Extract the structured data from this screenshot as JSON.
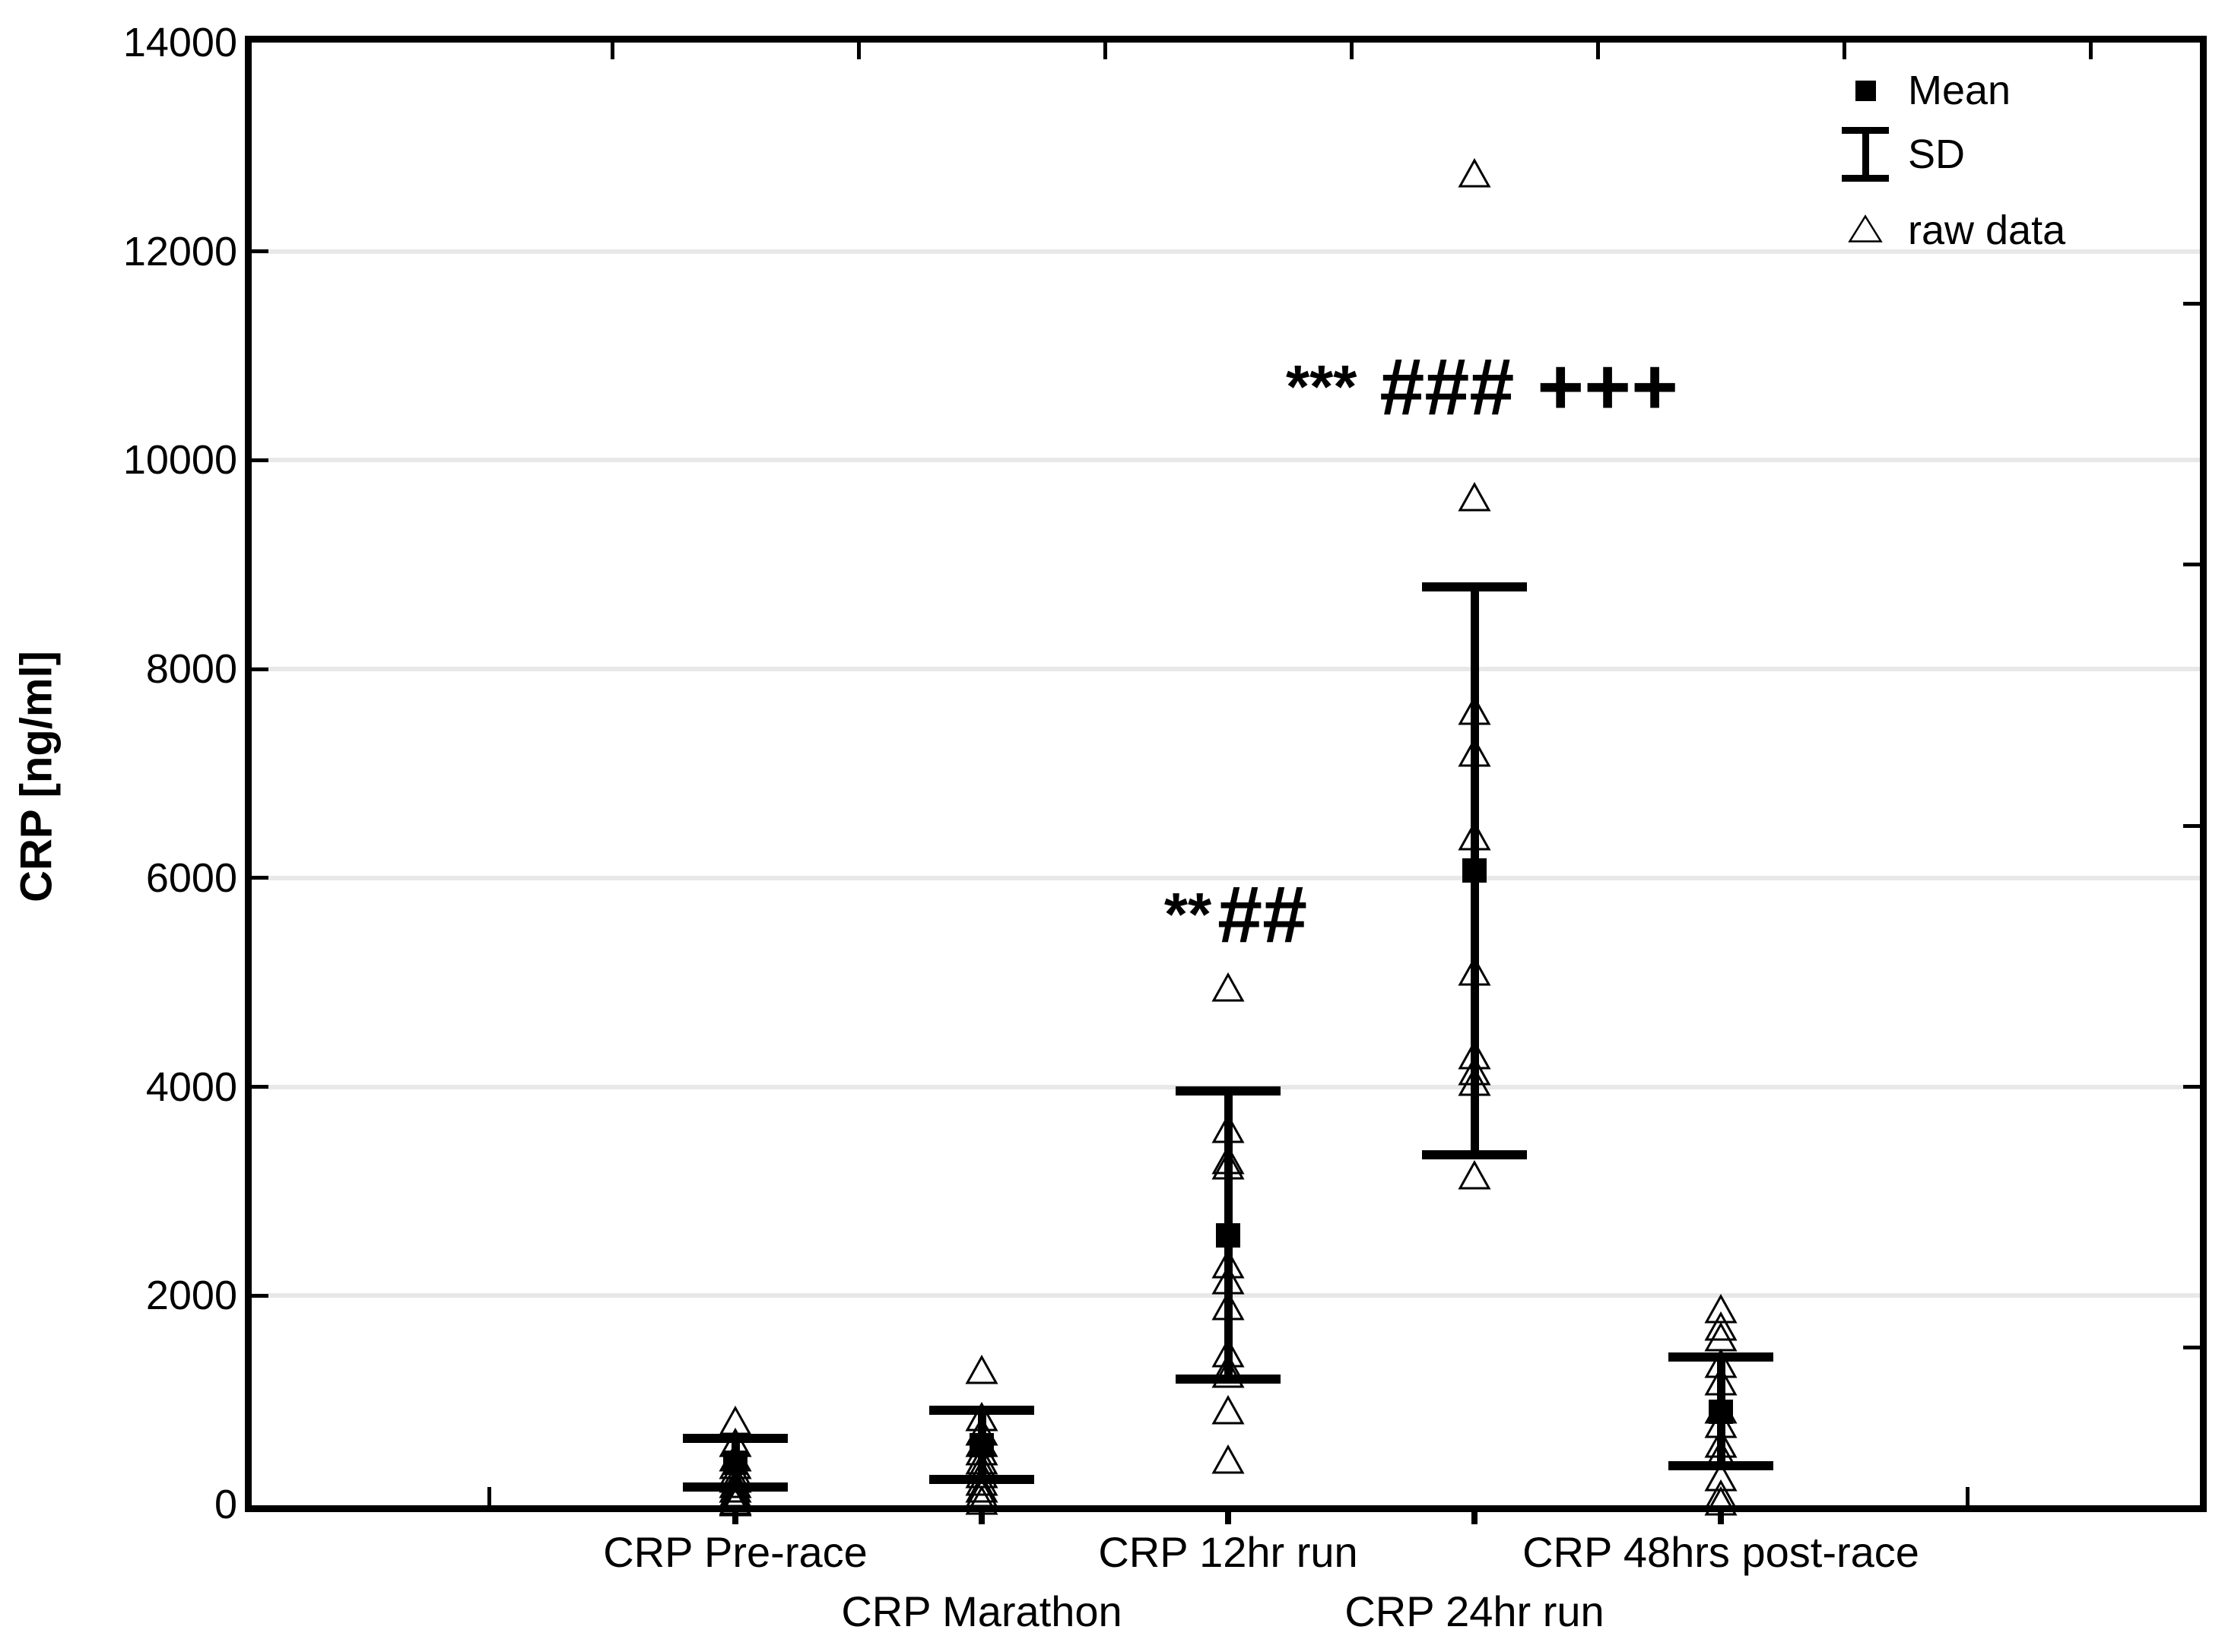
{
  "chart_data": {
    "type": "scatter",
    "title": "",
    "ylabel": "CRP [ng/ml]",
    "xlabel": "",
    "ylim": [
      0,
      14000
    ],
    "y_ticks": [
      0,
      2000,
      4000,
      6000,
      8000,
      10000,
      12000,
      14000
    ],
    "y_tick_labels": [
      "0",
      "2000",
      "4000",
      "6000",
      "8000",
      "10000",
      "12000",
      "14000"
    ],
    "grid": "horizontal light gray lines at every 2000",
    "categories": [
      "CRP Pre-race",
      "CRP Marathon",
      "CRP 12hr run",
      "CRP 24hr run",
      "CRP 48hrs post-race"
    ],
    "series": [
      {
        "name": "CRP Pre-race",
        "mean": 400,
        "sd": 230,
        "raw": [
          800,
          590,
          450,
          380,
          310,
          250,
          200,
          150,
          110,
          70,
          40,
          20
        ]
      },
      {
        "name": "CRP Marathon",
        "mean": 570,
        "sd": 330,
        "raw": [
          1290,
          840,
          700,
          590,
          510,
          420,
          360,
          290,
          220,
          150,
          110,
          40
        ]
      },
      {
        "name": "CRP 12hr run",
        "mean": 2580,
        "sd": 1380,
        "raw": [
          4950,
          3600,
          3300,
          3250,
          2300,
          2150,
          1900,
          1450,
          1300,
          1250,
          900,
          430
        ]
      },
      {
        "name": "CRP 24hr run",
        "mean": 6070,
        "sd": 2720,
        "raw": [
          12750,
          9650,
          7600,
          7200,
          6400,
          5100,
          4300,
          4150,
          4050,
          3150
        ]
      },
      {
        "name": "CRP 48hrs post-race",
        "mean": 890,
        "sd": 520,
        "raw": [
          1870,
          1700,
          1600,
          1350,
          1180,
          910,
          770,
          580,
          480,
          260,
          95,
          30
        ]
      }
    ],
    "legend": {
      "position": "top-right",
      "entries": [
        {
          "marker": "filled-square",
          "label": "Mean"
        },
        {
          "marker": "error-bar",
          "label": "SD"
        },
        {
          "marker": "open-triangle",
          "label": "raw data"
        }
      ]
    },
    "annotations": [
      {
        "category": "CRP 12hr run",
        "y_value": 5650,
        "parts": [
          {
            "text": "**",
            "size": "small"
          },
          {
            "text": "##",
            "size": "large"
          }
        ]
      },
      {
        "category": "CRP 24hr run",
        "y_value": 10700,
        "parts": [
          {
            "text": "***",
            "size": "small"
          },
          {
            "text": "###",
            "size": "large"
          },
          {
            "text": "+++",
            "size": "large"
          }
        ]
      }
    ],
    "colors": {
      "foreground": "#000000",
      "gridline": "#e8e8e8",
      "background": "#ffffff"
    }
  }
}
